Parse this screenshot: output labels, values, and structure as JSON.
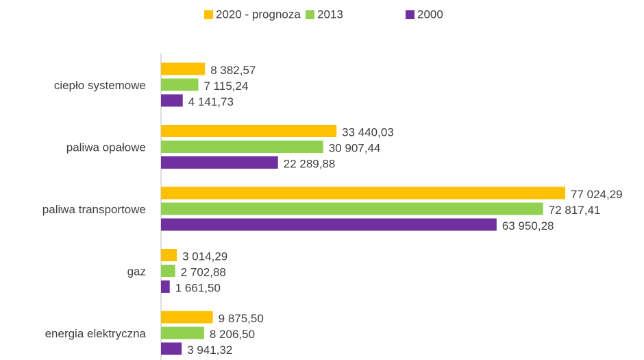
{
  "chart_data": {
    "type": "bar",
    "orientation": "horizontal",
    "categories": [
      "ciepło systemowe",
      "paliwa opałowe",
      "paliwa transportowe",
      "gaz",
      "energia elektryczna"
    ],
    "series": [
      {
        "name": "2020 - prognoza",
        "color": "#FFC000",
        "values": [
          8382.57,
          33440.03,
          77024.29,
          3014.29,
          9875.5
        ],
        "value_labels": [
          "8 382,57",
          "33 440,03",
          "77 024,29",
          "3 014,29",
          "9 875,50"
        ]
      },
      {
        "name": "2013",
        "color": "#92D050",
        "values": [
          7115.24,
          30907.44,
          72817.41,
          2702.88,
          8206.5
        ],
        "value_labels": [
          "7 115,24",
          "30 907,44",
          "72 817,41",
          "2 702,88",
          "8 206,50"
        ]
      },
      {
        "name": "2000",
        "color": "#7030A0",
        "values": [
          4141.73,
          22289.88,
          63950.28,
          1661.5,
          3941.32
        ],
        "value_labels": [
          "4 141,73",
          "22 289,88",
          "63 950,28",
          "1 661,50",
          "3 941,32"
        ]
      }
    ],
    "legend": "top"
  }
}
